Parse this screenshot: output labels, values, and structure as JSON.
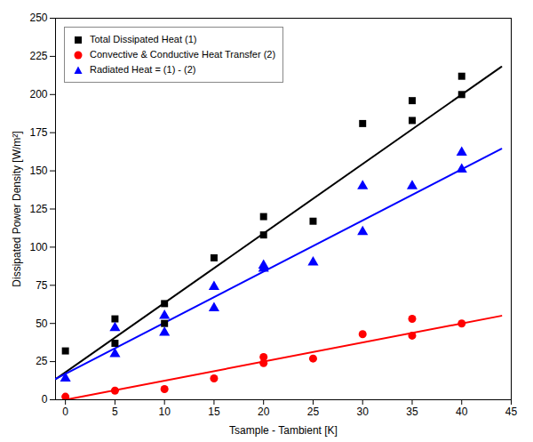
{
  "chart_data": {
    "type": "scatter",
    "xlabel": "Tsample - Tambient [K]",
    "ylabel": "Dissipated Power Density [W/m²]",
    "xlim": [
      -1,
      45
    ],
    "ylim": [
      0,
      250
    ],
    "xticks": [
      0,
      5,
      10,
      15,
      20,
      25,
      30,
      35,
      40,
      45
    ],
    "yticks": [
      0,
      25,
      50,
      75,
      100,
      125,
      150,
      175,
      200,
      225,
      250
    ],
    "legend": "upper left",
    "series": [
      {
        "name": "Total Dissipated Heat (1)",
        "type": "scatter",
        "color": "black",
        "marker": "square",
        "x": [
          0,
          5,
          5,
          10,
          10,
          15,
          20,
          20,
          25,
          30,
          35,
          35,
          40,
          40
        ],
        "values": [
          32,
          53,
          37,
          63,
          50,
          93,
          120,
          108,
          117,
          181,
          183,
          196,
          200,
          212
        ]
      },
      {
        "type": "line",
        "color": "black",
        "x": [
          -1,
          44
        ],
        "values": [
          13.45,
          218.2
        ]
      },
      {
        "name": "Convective & Conductive Heat Transfer (2)",
        "type": "scatter",
        "color": "red",
        "marker": "circle",
        "x": [
          0,
          5,
          10,
          15,
          20,
          20,
          25,
          30,
          35,
          35,
          40
        ],
        "values": [
          2,
          6,
          7,
          14,
          24,
          28,
          27,
          43,
          42,
          53,
          50
        ]
      },
      {
        "type": "line",
        "color": "red",
        "x": [
          0,
          44
        ],
        "values": [
          0,
          55
        ]
      },
      {
        "name": "Radiated Heat = (1) - (2)",
        "type": "scatter",
        "color": "blue",
        "marker": "triangle",
        "x": [
          0,
          5,
          5,
          10,
          10,
          15,
          15,
          20,
          20,
          25,
          30,
          30,
          35,
          40,
          40
        ],
        "values": [
          14,
          47,
          30,
          55,
          44,
          74,
          60,
          88,
          86,
          90,
          140,
          110,
          140,
          151,
          162
        ]
      },
      {
        "type": "line",
        "color": "blue",
        "x": [
          -1,
          44
        ],
        "values": [
          13.65,
          164.4
        ]
      }
    ]
  }
}
